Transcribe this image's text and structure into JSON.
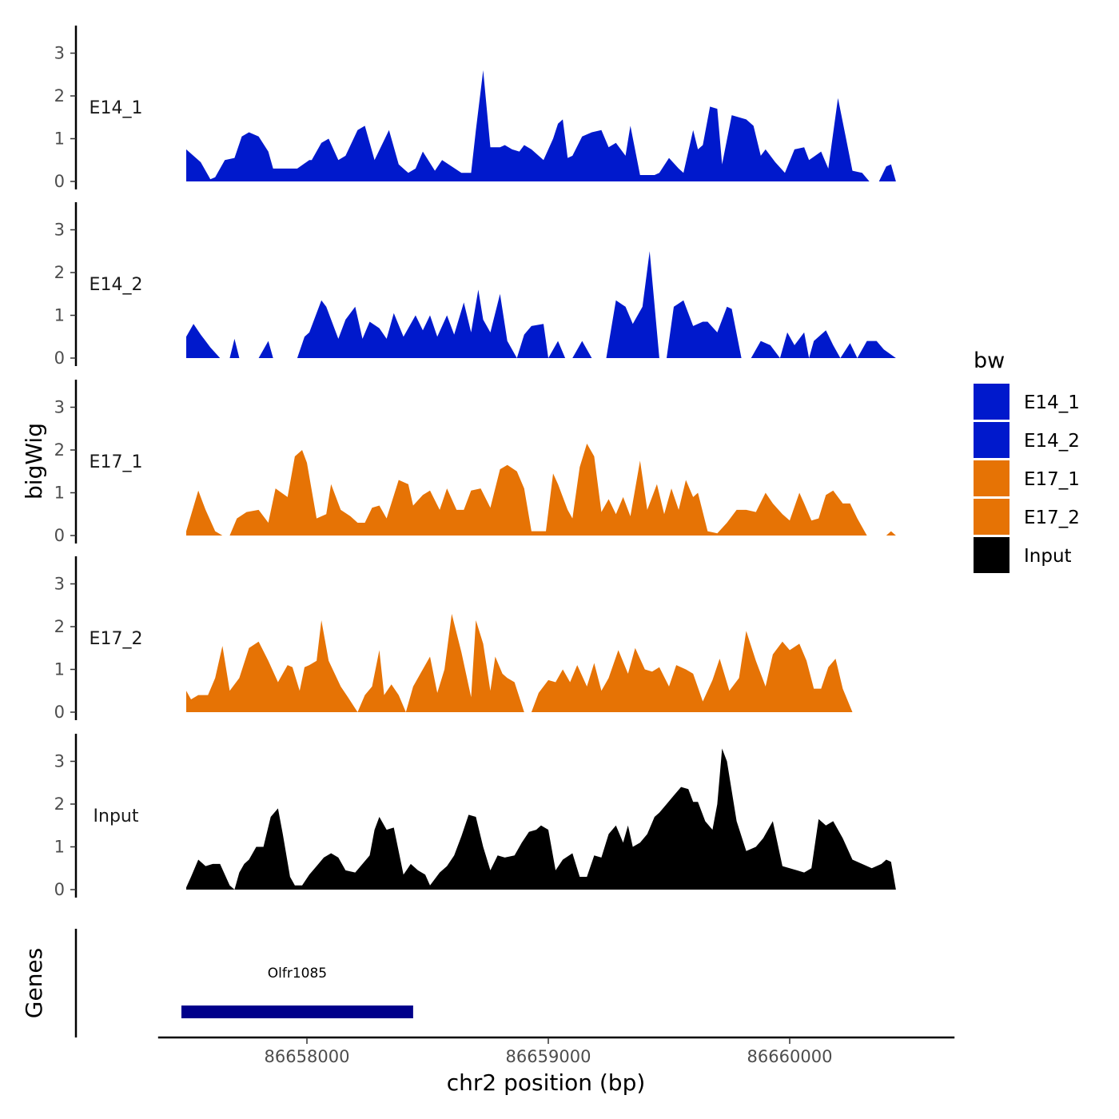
{
  "chart_data": {
    "type": "area",
    "ylabel": "bigWig",
    "xlabel": "chr2 position (bp)",
    "ylim": [
      0,
      3.6
    ],
    "y_ticks": [
      "0",
      "1",
      "2",
      "3"
    ],
    "x_range": [
      86657400,
      86660600
    ],
    "x_ticks": [
      86658000,
      86659000,
      86660000
    ],
    "x_tick_labels": [
      "86658000",
      "86659000",
      "86660000"
    ],
    "legend": {
      "title": "bw",
      "position": "right",
      "entries": [
        {
          "label": "E14_1",
          "color": "#0019CC"
        },
        {
          "label": "E14_2",
          "color": "#0019CC"
        },
        {
          "label": "E17_1",
          "color": "#E67305"
        },
        {
          "label": "E17_2",
          "color": "#E67305"
        },
        {
          "label": "Input",
          "color": "#000000"
        }
      ]
    },
    "series": [
      {
        "name": "E14_1",
        "color": "#0019CC",
        "x": [
          86657500,
          86657560,
          86657600,
          86657620,
          86657660,
          86657700,
          86657730,
          86657760,
          86657800,
          86657840,
          86657860,
          86657900,
          86657960,
          86658010,
          86658020,
          86658060,
          86658090,
          86658130,
          86658160,
          86658210,
          86658240,
          86658280,
          86658340,
          86658380,
          86658420,
          86658450,
          86658480,
          86658530,
          86658560,
          86658600,
          86658640,
          86658680,
          86658700,
          86658730,
          86658760,
          86658800,
          86658820,
          86658850,
          86658880,
          86658900,
          86658930,
          86658980,
          86659020,
          86659040,
          86659060,
          86659080,
          86659100,
          86659140,
          86659180,
          86659220,
          86659250,
          86659280,
          86659320,
          86659340,
          86659380,
          86659440,
          86659460,
          86659500,
          86659540,
          86659560,
          86659600,
          86659620,
          86659640,
          86659670,
          86659700,
          86659720,
          86659760,
          86659820,
          86659850,
          86659880,
          86659900,
          86659940,
          86659980,
          86660020,
          86660060,
          86660080,
          86660130,
          86660160,
          86660200,
          86660230,
          86660260,
          86660300,
          86660330,
          86660370,
          86660400,
          86660420,
          86660440
        ],
        "y": [
          0.75,
          0.45,
          0.05,
          0.1,
          0.5,
          0.55,
          1.05,
          1.15,
          1.05,
          0.7,
          0.3,
          0.3,
          0.3,
          0.5,
          0.5,
          0.9,
          1.0,
          0.5,
          0.6,
          1.2,
          1.3,
          0.5,
          1.2,
          0.4,
          0.2,
          0.3,
          0.7,
          0.25,
          0.5,
          0.35,
          0.2,
          0.2,
          1.2,
          2.6,
          0.8,
          0.8,
          0.85,
          0.75,
          0.7,
          0.85,
          0.75,
          0.5,
          1.0,
          1.35,
          1.45,
          0.55,
          0.6,
          1.05,
          1.15,
          1.2,
          0.8,
          0.9,
          0.6,
          1.3,
          0.15,
          0.15,
          0.2,
          0.55,
          0.3,
          0.2,
          1.2,
          0.75,
          0.85,
          1.75,
          1.7,
          0.4,
          1.55,
          1.45,
          1.3,
          0.6,
          0.75,
          0.45,
          0.2,
          0.75,
          0.8,
          0.5,
          0.7,
          0.3,
          1.95,
          1.1,
          0.25,
          0.2,
          0.0,
          0.0,
          0.35,
          0.4,
          0.0
        ]
      },
      {
        "name": "E14_2",
        "color": "#0019CC",
        "x": [
          86657500,
          86657530,
          86657560,
          86657600,
          86657640,
          86657680,
          86657700,
          86657720,
          86657760,
          86657800,
          86657840,
          86657860,
          86657880,
          86657920,
          86657960,
          86657990,
          86658010,
          86658060,
          86658080,
          86658130,
          86658160,
          86658200,
          86658230,
          86658260,
          86658300,
          86658330,
          86658360,
          86658400,
          86658450,
          86658480,
          86658510,
          86658540,
          86658580,
          86658610,
          86658650,
          86658680,
          86658710,
          86658730,
          86658760,
          86658800,
          86658830,
          86658870,
          86658900,
          86658930,
          86658980,
          86659000,
          86659040,
          86659070,
          86659100,
          86659140,
          86659180,
          86659210,
          86659240,
          86659280,
          86659320,
          86659350,
          86659390,
          86659420,
          86659460,
          86659490,
          86659520,
          86659560,
          86659600,
          86659640,
          86659660,
          86659700,
          86659740,
          86659760,
          86659800,
          86659840,
          86659880,
          86659920,
          86659960,
          86659990,
          86660020,
          86660060,
          86660080,
          86660100,
          86660150,
          86660180,
          86660210,
          86660250,
          86660280,
          86660320,
          86660360,
          86660390,
          86660440
        ],
        "y": [
          0.5,
          0.8,
          0.55,
          0.25,
          0.0,
          0.0,
          0.45,
          0.0,
          0.0,
          0.0,
          0.4,
          0.0,
          0.0,
          0.0,
          0.0,
          0.5,
          0.6,
          1.35,
          1.2,
          0.45,
          0.9,
          1.2,
          0.45,
          0.85,
          0.7,
          0.45,
          1.05,
          0.5,
          1.0,
          0.65,
          1.0,
          0.5,
          1.0,
          0.55,
          1.3,
          0.6,
          1.6,
          0.9,
          0.6,
          1.5,
          0.4,
          0.0,
          0.55,
          0.75,
          0.8,
          0.0,
          0.4,
          0.0,
          0.0,
          0.4,
          0.0,
          0.0,
          0.0,
          1.35,
          1.2,
          0.8,
          1.2,
          2.5,
          0.0,
          0.0,
          1.2,
          1.35,
          0.75,
          0.85,
          0.85,
          0.6,
          1.2,
          1.15,
          0.0,
          0.0,
          0.4,
          0.3,
          0.0,
          0.6,
          0.3,
          0.6,
          0.0,
          0.4,
          0.65,
          0.3,
          0.0,
          0.35,
          0.0,
          0.4,
          0.4,
          0.2,
          0.0
        ]
      },
      {
        "name": "E17_1",
        "color": "#E67305",
        "x": [
          86657500,
          86657550,
          86657580,
          86657620,
          86657650,
          86657680,
          86657710,
          86657750,
          86657800,
          86657840,
          86657870,
          86657920,
          86657950,
          86657980,
          86658000,
          86658040,
          86658080,
          86658100,
          86658140,
          86658180,
          86658210,
          86658240,
          86658270,
          86658300,
          86658330,
          86658380,
          86658420,
          86658440,
          86658480,
          86658510,
          86658550,
          86658580,
          86658620,
          86658650,
          86658680,
          86658720,
          86658760,
          86658800,
          86658830,
          86658870,
          86658900,
          86658930,
          86658960,
          86658990,
          86659020,
          86659040,
          86659080,
          86659100,
          86659130,
          86659160,
          86659190,
          86659220,
          86659250,
          86659280,
          86659310,
          86659340,
          86659380,
          86659410,
          86659450,
          86659480,
          86659510,
          86659540,
          86659570,
          86659600,
          86659620,
          86659660,
          86659700,
          86659740,
          86659780,
          86659820,
          86659860,
          86659900,
          86659930,
          86659970,
          86660000,
          86660040,
          86660060,
          86660090,
          86660120,
          86660150,
          86660180,
          86660220,
          86660250,
          86660280,
          86660320,
          86660360,
          86660400,
          86660420,
          86660440
        ],
        "y": [
          0.1,
          1.05,
          0.6,
          0.1,
          0.0,
          0.0,
          0.4,
          0.55,
          0.6,
          0.3,
          1.1,
          0.9,
          1.85,
          2.0,
          1.7,
          0.4,
          0.5,
          1.2,
          0.6,
          0.45,
          0.3,
          0.3,
          0.65,
          0.7,
          0.4,
          1.3,
          1.2,
          0.7,
          0.95,
          1.05,
          0.6,
          1.1,
          0.6,
          0.6,
          1.05,
          1.1,
          0.65,
          1.55,
          1.65,
          1.5,
          1.1,
          0.1,
          0.1,
          0.1,
          1.45,
          1.2,
          0.6,
          0.4,
          1.6,
          2.15,
          1.85,
          0.55,
          0.85,
          0.5,
          0.9,
          0.45,
          1.75,
          0.6,
          1.2,
          0.5,
          1.1,
          0.6,
          1.3,
          0.9,
          1.0,
          0.1,
          0.05,
          0.3,
          0.6,
          0.6,
          0.55,
          1.0,
          0.75,
          0.5,
          0.35,
          1.0,
          0.75,
          0.35,
          0.4,
          0.95,
          1.05,
          0.75,
          0.75,
          0.4,
          0.0,
          0.0,
          0.0,
          0.1,
          0.0
        ]
      },
      {
        "name": "E17_2",
        "color": "#E67305",
        "x": [
          86657500,
          86657520,
          86657550,
          86657590,
          86657620,
          86657650,
          86657680,
          86657720,
          86657760,
          86657800,
          86657840,
          86657880,
          86657920,
          86657940,
          86657970,
          86657990,
          86658010,
          86658040,
          86658060,
          86658090,
          86658140,
          86658170,
          86658210,
          86658240,
          86658270,
          86658300,
          86658320,
          86658350,
          86658380,
          86658410,
          86658440,
          86658470,
          86658510,
          86658540,
          86658570,
          86658600,
          86658640,
          86658680,
          86658700,
          86658730,
          86658760,
          86658780,
          86658810,
          86658830,
          86658860,
          86658900,
          86658930,
          86658960,
          86659000,
          86659030,
          86659060,
          86659090,
          86659120,
          86659160,
          86659190,
          86659220,
          86659250,
          86659290,
          86659330,
          86659360,
          86659400,
          86659430,
          86659460,
          86659500,
          86659530,
          86659570,
          86659600,
          86659640,
          86659680,
          86659710,
          86659750,
          86659790,
          86659820,
          86659860,
          86659900,
          86659930,
          86659970,
          86660000,
          86660040,
          86660070,
          86660100,
          86660130,
          86660160,
          86660190,
          86660220,
          86660260,
          86660290,
          86660320,
          86660350,
          86660370
        ],
        "y": [
          0.5,
          0.3,
          0.4,
          0.4,
          0.8,
          1.55,
          0.5,
          0.8,
          1.5,
          1.65,
          1.2,
          0.7,
          1.1,
          1.05,
          0.5,
          1.05,
          1.1,
          1.2,
          2.15,
          1.2,
          0.6,
          0.35,
          0.0,
          0.4,
          0.6,
          1.45,
          0.4,
          0.65,
          0.4,
          0.0,
          0.6,
          0.9,
          1.3,
          0.45,
          1.0,
          2.3,
          1.4,
          0.35,
          2.15,
          1.6,
          0.5,
          1.3,
          0.9,
          0.8,
          0.7,
          0.0,
          0.0,
          0.45,
          0.75,
          0.7,
          1.0,
          0.7,
          1.1,
          0.6,
          1.15,
          0.5,
          0.8,
          1.45,
          0.9,
          1.5,
          1.0,
          0.95,
          1.05,
          0.6,
          1.1,
          1.0,
          0.9,
          0.25,
          0.75,
          1.25,
          0.5,
          0.8,
          1.9,
          1.2,
          0.6,
          1.35,
          1.65,
          1.45,
          1.6,
          1.2,
          0.55,
          0.55,
          1.05,
          1.25,
          0.55,
          0.0,
          0.0,
          0.0,
          0.0,
          0.0
        ]
      },
      {
        "name": "Input",
        "color": "#000000",
        "x": [
          86657500,
          86657520,
          86657550,
          86657580,
          86657610,
          86657640,
          86657680,
          86657700,
          86657720,
          86657740,
          86657760,
          86657790,
          86657820,
          86657850,
          86657880,
          86657900,
          86657930,
          86657950,
          86657980,
          86658010,
          86658040,
          86658070,
          86658100,
          86658130,
          86658160,
          86658200,
          86658230,
          86658260,
          86658280,
          86658300,
          86658330,
          86658360,
          86658400,
          86658430,
          86658460,
          86658490,
          86658510,
          86658550,
          86658580,
          86658610,
          86658640,
          86658670,
          86658700,
          86658730,
          86658760,
          86658790,
          86658820,
          86658860,
          86658890,
          86658920,
          86658950,
          86658970,
          86659000,
          86659030,
          86659060,
          86659100,
          86659130,
          86659160,
          86659190,
          86659220,
          86659250,
          86659280,
          86659310,
          86659330,
          86659350,
          86659380,
          86659410,
          86659440,
          86659460,
          86659490,
          86659520,
          86659550,
          86659580,
          86659600,
          86659620,
          86659650,
          86659680,
          86659700,
          86659720,
          86659740,
          86659780,
          86659820,
          86659860,
          86659890,
          86659930,
          86659970,
          86660000,
          86660030,
          86660060,
          86660090,
          86660120,
          86660150,
          86660180,
          86660220,
          86660260,
          86660300,
          86660340,
          86660380,
          86660400,
          86660420,
          86660440
        ],
        "y": [
          0.05,
          0.3,
          0.7,
          0.55,
          0.6,
          0.6,
          0.1,
          0.0,
          0.4,
          0.6,
          0.7,
          1.0,
          1.0,
          1.7,
          1.9,
          1.3,
          0.3,
          0.1,
          0.1,
          0.35,
          0.55,
          0.75,
          0.85,
          0.75,
          0.45,
          0.4,
          0.6,
          0.8,
          1.4,
          1.7,
          1.4,
          1.45,
          0.35,
          0.6,
          0.45,
          0.35,
          0.1,
          0.4,
          0.55,
          0.8,
          1.25,
          1.75,
          1.7,
          1.0,
          0.45,
          0.8,
          0.75,
          0.8,
          1.1,
          1.35,
          1.4,
          1.5,
          1.4,
          0.45,
          0.7,
          0.85,
          0.3,
          0.3,
          0.8,
          0.75,
          1.3,
          1.5,
          1.1,
          1.5,
          1.0,
          1.1,
          1.3,
          1.7,
          1.8,
          2.0,
          2.2,
          2.4,
          2.35,
          2.05,
          2.05,
          1.6,
          1.4,
          2.0,
          3.3,
          3.0,
          1.6,
          0.9,
          1.0,
          1.2,
          1.6,
          0.55,
          0.5,
          0.45,
          0.4,
          0.5,
          1.65,
          1.5,
          1.6,
          1.2,
          0.7,
          0.6,
          0.5,
          0.6,
          0.7,
          0.65,
          0.0
        ]
      }
    ],
    "genes_track": {
      "label": "Genes",
      "genes": [
        {
          "name": "Olfr1085",
          "start": 86657480,
          "end": 86658440,
          "color": "#00008B"
        }
      ]
    }
  }
}
